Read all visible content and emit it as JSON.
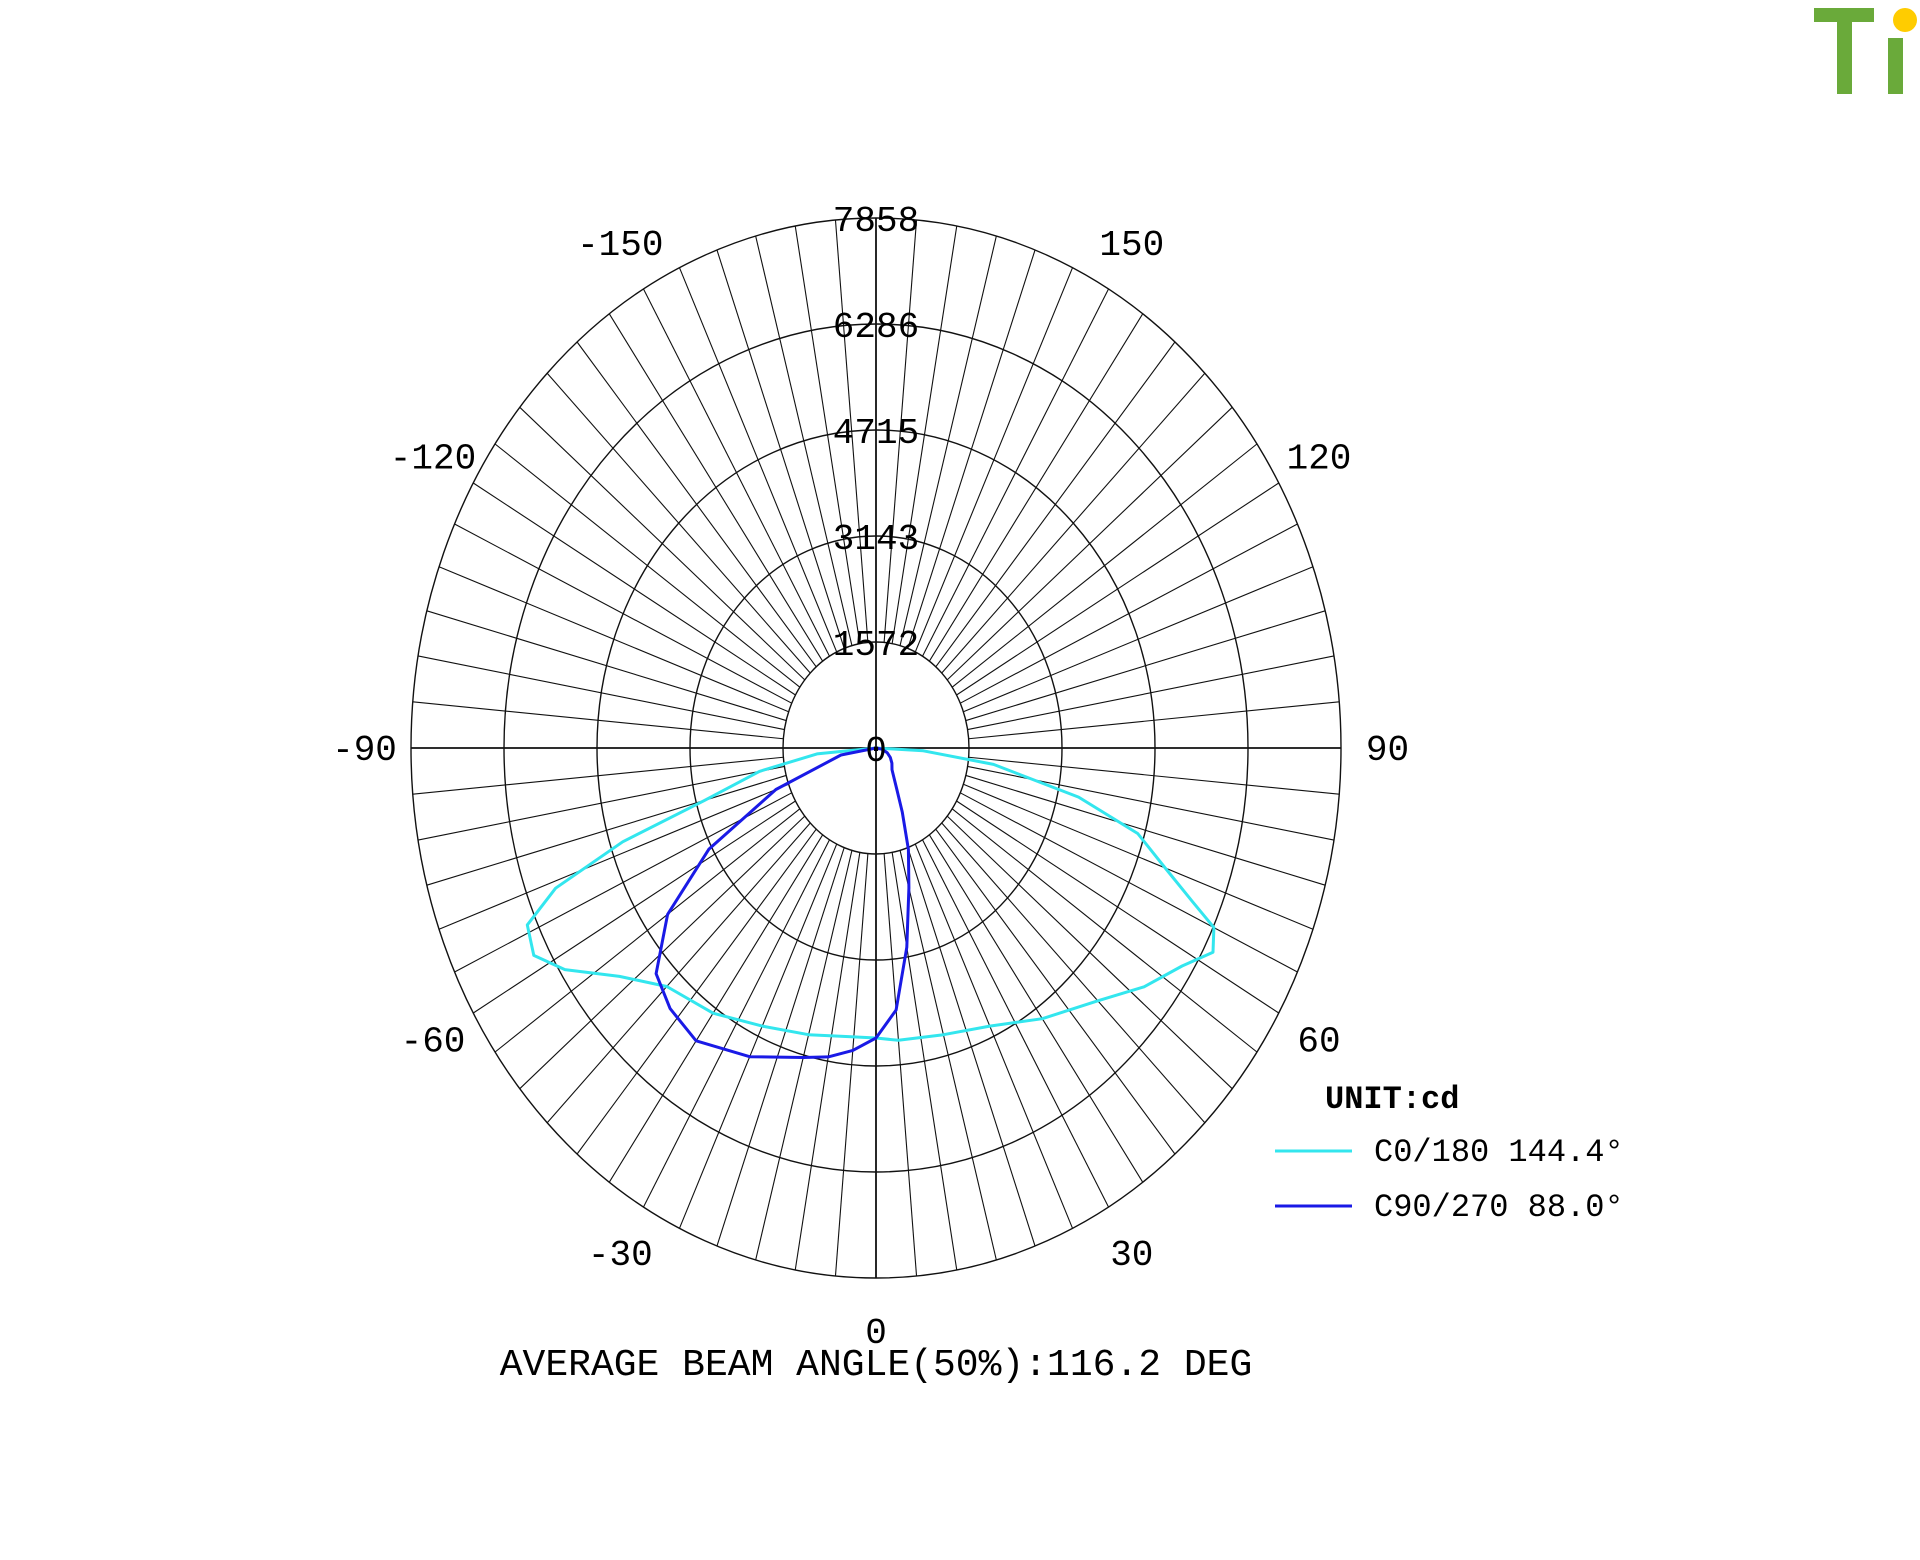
{
  "logo": {
    "text": "Ti",
    "color_letters": "#6aaa3a",
    "color_dot": "#ffcc00"
  },
  "chart_data": {
    "type": "polar",
    "ring_labels": [
      "7858",
      "6286",
      "4715",
      "3143",
      "1572",
      "0"
    ],
    "rmax": 7858,
    "angle_labels": [
      {
        "angle": 0,
        "text": "0"
      },
      {
        "angle": 30,
        "text": "30"
      },
      {
        "angle": -30,
        "text": "-30"
      },
      {
        "angle": 60,
        "text": "60"
      },
      {
        "angle": -60,
        "text": "-60"
      },
      {
        "angle": 90,
        "text": "90"
      },
      {
        "angle": -90,
        "text": "-90"
      },
      {
        "angle": 120,
        "text": "120"
      },
      {
        "angle": -120,
        "text": "-120"
      },
      {
        "angle": 150,
        "text": "150"
      },
      {
        "angle": -150,
        "text": "-150"
      }
    ],
    "unit_label": "UNIT:cd",
    "series": [
      {
        "name": "C0/180",
        "legend": "C0/180 144.4°",
        "color": "#33e6ee",
        "points": [
          [
            -90,
            0
          ],
          [
            -85,
            1000
          ],
          [
            -80,
            2000
          ],
          [
            -75,
            3000
          ],
          [
            -72,
            4500
          ],
          [
            -69,
            5800
          ],
          [
            -66,
            6450
          ],
          [
            -62,
            6550
          ],
          [
            -58,
            6200
          ],
          [
            -52,
            5500
          ],
          [
            -45,
            5000
          ],
          [
            -35,
            4800
          ],
          [
            -25,
            4550
          ],
          [
            -15,
            4400
          ],
          [
            -5,
            4300
          ],
          [
            0,
            4300
          ],
          [
            5,
            4350
          ],
          [
            15,
            4400
          ],
          [
            25,
            4550
          ],
          [
            35,
            4900
          ],
          [
            45,
            5300
          ],
          [
            52,
            5750
          ],
          [
            58,
            6100
          ],
          [
            62,
            6450
          ],
          [
            65,
            6300
          ],
          [
            67,
            5800
          ],
          [
            70,
            5200
          ],
          [
            74,
            4600
          ],
          [
            78,
            3500
          ],
          [
            83,
            2000
          ],
          [
            87,
            800
          ],
          [
            90,
            0
          ]
        ]
      },
      {
        "name": "C90/270",
        "legend": "C90/270 88.0°",
        "color": "#1a1ae6",
        "points": [
          [
            -90,
            0
          ],
          [
            -80,
            600
          ],
          [
            -70,
            1800
          ],
          [
            -62,
            3200
          ],
          [
            -55,
            4300
          ],
          [
            -48,
            5000
          ],
          [
            -42,
            5200
          ],
          [
            -35,
            5300
          ],
          [
            -25,
            5050
          ],
          [
            -15,
            4750
          ],
          [
            -10,
            4650
          ],
          [
            -5,
            4500
          ],
          [
            0,
            4300
          ],
          [
            5,
            3900
          ],
          [
            10,
            3000
          ],
          [
            15,
            2150
          ],
          [
            20,
            1600
          ],
          [
            25,
            1050
          ],
          [
            30,
            700
          ],
          [
            40,
            420
          ],
          [
            50,
            350
          ],
          [
            60,
            280
          ],
          [
            70,
            200
          ],
          [
            80,
            100
          ],
          [
            90,
            0
          ]
        ]
      }
    ],
    "footer": "AVERAGE BEAM ANGLE(50%):116.2 DEG"
  }
}
